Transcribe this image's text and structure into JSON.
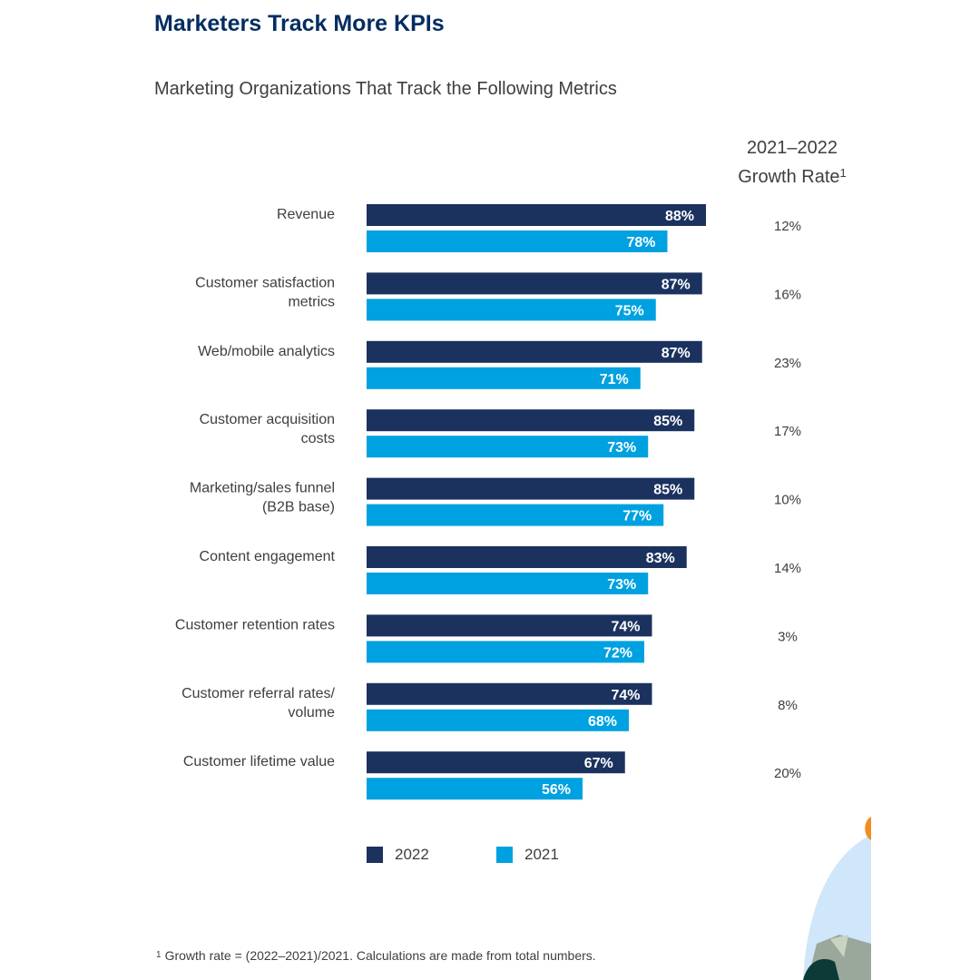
{
  "title": "Marketers Track More KPIs",
  "subtitle": "Marketing Organizations That Track the Following Metrics",
  "growth_header": {
    "line1": "2021–2022",
    "line2": "Growth Rate",
    "marker": "1"
  },
  "footnote": {
    "marker": "1",
    "text": "Growth rate = (2022–2021)/2021. Calculations are made from total numbers."
  },
  "colors": {
    "series_2022": "#1b325f",
    "series_2021": "#00a1e0",
    "title": "#032d60"
  },
  "chart_data": {
    "type": "bar",
    "orientation": "horizontal",
    "title": "Marketing Organizations That Track the Following Metrics",
    "categories": [
      [
        "Revenue"
      ],
      [
        "Customer satisfaction",
        "metrics"
      ],
      [
        "Web/mobile analytics"
      ],
      [
        "Customer acquisition",
        "costs"
      ],
      [
        "Marketing/sales funnel",
        "(B2B base)"
      ],
      [
        "Content engagement"
      ],
      [
        "Customer retention rates"
      ],
      [
        "Customer referral rates/",
        "volume"
      ],
      [
        "Customer lifetime value"
      ]
    ],
    "series": [
      {
        "name": "2022",
        "values": [
          88,
          87,
          87,
          85,
          85,
          83,
          74,
          74,
          67
        ]
      },
      {
        "name": "2021",
        "values": [
          78,
          75,
          71,
          73,
          77,
          73,
          72,
          68,
          56
        ]
      }
    ],
    "growth_rate": [
      "12%",
      "16%",
      "23%",
      "17%",
      "10%",
      "14%",
      "3%",
      "8%",
      "20%"
    ],
    "value_suffix": "%",
    "xlim": [
      0,
      100
    ],
    "legend": [
      "2022",
      "2021"
    ],
    "legend_position": "bottom"
  }
}
